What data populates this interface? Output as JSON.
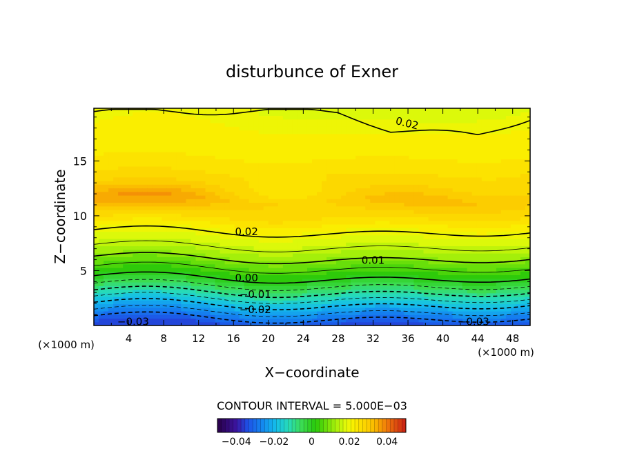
{
  "chart_data": {
    "type": "contour",
    "title": "disturbunce of Exner",
    "xlabel": "X−coordinate",
    "ylabel": "Z−coordinate",
    "x_unit_left": "(×1000 m)",
    "x_unit_right": "(×1000 m)",
    "x_ticks": [
      4,
      8,
      12,
      16,
      20,
      24,
      28,
      32,
      36,
      40,
      44,
      48
    ],
    "y_ticks": [
      5,
      10,
      15
    ],
    "xlim": [
      0,
      50
    ],
    "ylim": [
      0,
      19.8
    ],
    "contour_interval_text": "CONTOUR INTERVAL = 5.000E−03",
    "contour_interval": 0.005,
    "contour_labels": [
      {
        "text": "0.02",
        "x": 35.8,
        "z": 18.5
      },
      {
        "text": "0.02",
        "x": 17.5,
        "z": 8.6
      },
      {
        "text": "0.01",
        "x": 32.0,
        "z": 6.0
      },
      {
        "text": "0.00",
        "x": 17.5,
        "z": 4.4
      },
      {
        "text": "−0.01",
        "x": 18.5,
        "z": 2.9
      },
      {
        "text": "−0.02",
        "x": 18.5,
        "z": 1.5
      },
      {
        "text": "−0.03",
        "x": 4.5,
        "z": 0.4
      },
      {
        "text": "−0.03",
        "x": 43.5,
        "z": 0.4
      }
    ],
    "field_profile_by_z": [
      {
        "z": 0.2,
        "value": -0.034
      },
      {
        "z": 1.0,
        "value": -0.027
      },
      {
        "z": 2.0,
        "value": -0.019
      },
      {
        "z": 3.0,
        "value": -0.01
      },
      {
        "z": 4.0,
        "value": -0.002
      },
      {
        "z": 4.6,
        "value": 0.002
      },
      {
        "z": 5.6,
        "value": 0.007
      },
      {
        "z": 6.4,
        "value": 0.012
      },
      {
        "z": 7.4,
        "value": 0.016
      },
      {
        "z": 8.5,
        "value": 0.02
      },
      {
        "z": 10.0,
        "value": 0.027
      },
      {
        "z": 11.5,
        "value": 0.033
      },
      {
        "z": 13.0,
        "value": 0.028
      },
      {
        "z": 15.0,
        "value": 0.024
      },
      {
        "z": 17.5,
        "value": 0.022
      },
      {
        "z": 19.8,
        "value": 0.018
      }
    ],
    "colorbar": {
      "range": [
        -0.05,
        0.05
      ],
      "tick_labels": [
        "−0.04",
        "−0.02",
        "0",
        "0.02",
        "0.04"
      ],
      "tick_values": [
        -0.04,
        -0.02,
        0,
        0.02,
        0.04
      ]
    }
  }
}
